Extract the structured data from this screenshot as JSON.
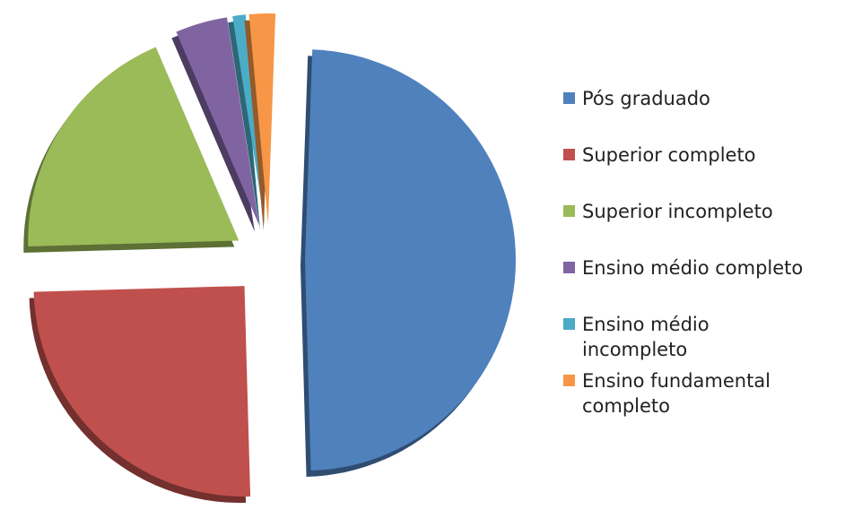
{
  "chart_data": {
    "type": "pie",
    "categories": [
      "Pós graduado",
      "Superior completo",
      "Superior incompleto",
      "Ensino médio completo",
      "Ensino médio incompleto",
      "Ensino fundamental completo"
    ],
    "values": [
      49,
      25,
      19,
      4,
      1,
      2
    ],
    "colors": [
      "#4f81bd",
      "#c0504d",
      "#9bbb59",
      "#8064a2",
      "#4bacc6",
      "#f79646"
    ],
    "legend": "right"
  }
}
